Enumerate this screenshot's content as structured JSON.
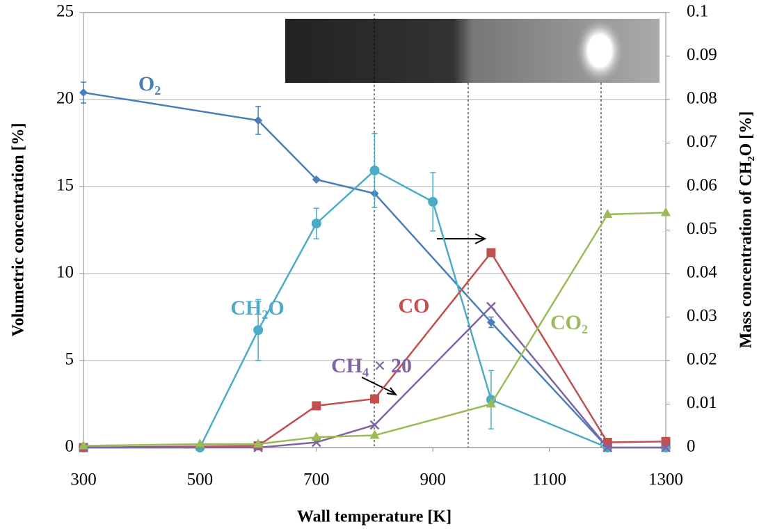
{
  "chart_data": {
    "type": "line",
    "x_label": "Wall temperature [K]",
    "y_label": "Volumetric concentration [%]",
    "y2_label": "Mass concentration of CH₂O [%]",
    "xlim": [
      300,
      1300
    ],
    "xticks": [
      300,
      500,
      700,
      900,
      1100,
      1300
    ],
    "ylim": [
      0,
      25
    ],
    "yticks": [
      0,
      5,
      10,
      15,
      20,
      25
    ],
    "y2lim": [
      0,
      0.1
    ],
    "y2ticks": [
      0,
      0.01,
      0.02,
      0.03,
      0.04,
      0.05,
      0.06,
      0.07,
      0.08,
      0.09,
      0.1
    ],
    "grid": true,
    "series": [
      {
        "name": "O₂",
        "color": "#4a7ebb",
        "marker": "diamond",
        "x": [
          300,
          600,
          700,
          800,
          1000,
          1200
        ],
        "values": [
          20.4,
          18.8,
          15.4,
          14.6,
          7.2,
          0
        ],
        "errors": [
          0.6,
          0.8,
          null,
          null,
          0.3,
          null
        ]
      },
      {
        "name": "CH₂O",
        "color": "#4bacc6",
        "marker": "circle",
        "axis": "y2",
        "x": [
          300,
          500,
          600,
          700,
          800,
          900,
          1000,
          1200,
          1300
        ],
        "values": [
          0,
          0,
          0.027,
          0.0515,
          0.0637,
          0.0565,
          0.011,
          0,
          0
        ],
        "errors": [
          null,
          null,
          0.007,
          0.0035,
          0.0085,
          0.0067,
          0.0067,
          null,
          null
        ]
      },
      {
        "name": "CO",
        "color": "#c0504d",
        "marker": "square",
        "x": [
          300,
          600,
          700,
          800,
          1000,
          1200,
          1300
        ],
        "values": [
          0,
          0.1,
          2.4,
          2.8,
          11.2,
          0.3,
          0.35
        ]
      },
      {
        "name": "CH₄ × 20",
        "color": "#8064a2",
        "marker": "x",
        "x": [
          300,
          600,
          700,
          800,
          1000,
          1200,
          1300
        ],
        "values": [
          0,
          0,
          0.3,
          1.3,
          8.1,
          0,
          0
        ]
      },
      {
        "name": "CO₂",
        "color": "#9bbb59",
        "marker": "triangle",
        "x": [
          300,
          500,
          600,
          700,
          800,
          1000,
          1200,
          1300
        ],
        "values": [
          0.1,
          0.2,
          0.2,
          0.6,
          0.7,
          2.5,
          13.4,
          13.5
        ]
      }
    ]
  }
}
